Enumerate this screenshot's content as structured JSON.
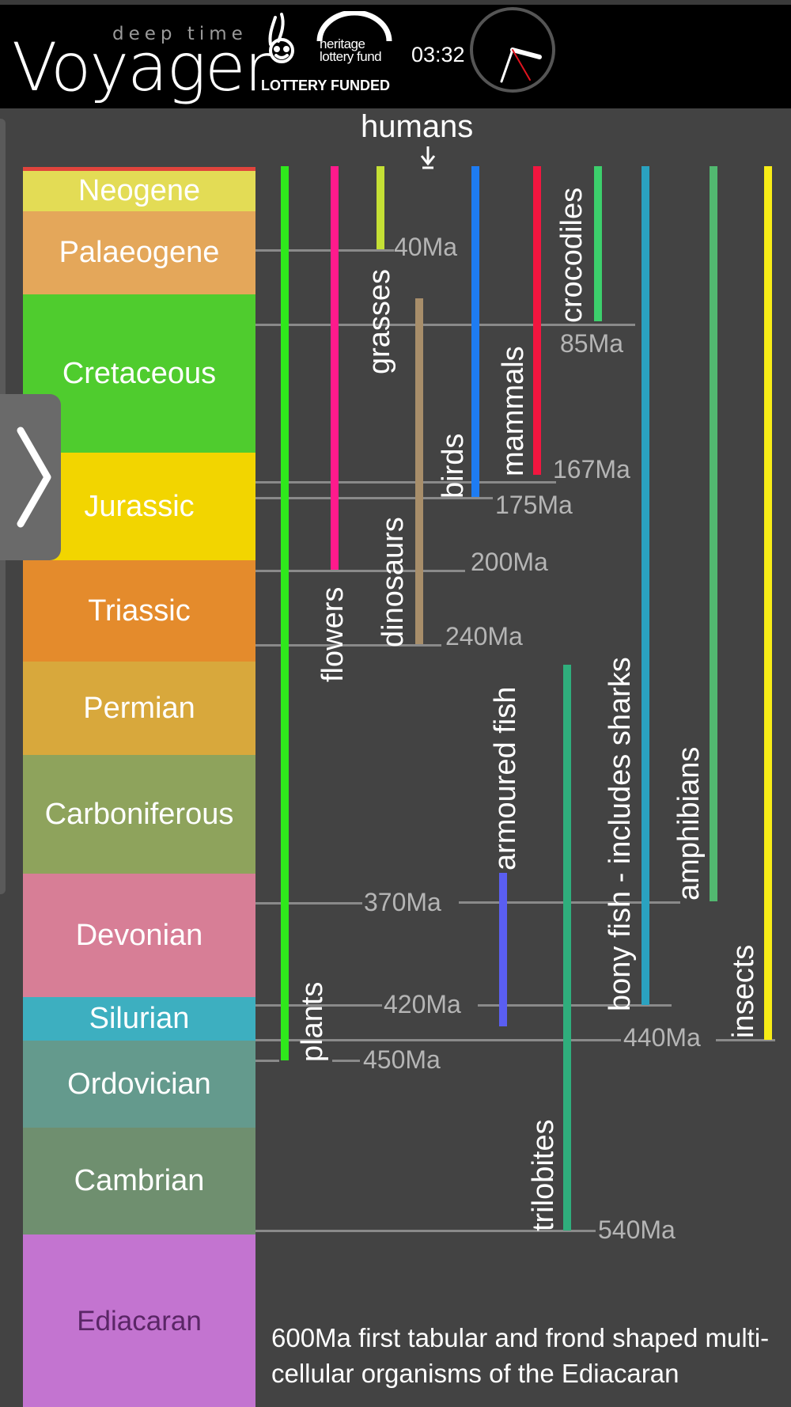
{
  "header": {
    "subtitle": "deep time",
    "title": "Voyager",
    "heritage_line1": "heritage",
    "heritage_line2": "lottery fund",
    "lottery_funded": "LOTTERY FUNDED",
    "time": "03:32"
  },
  "humans_label": "humans",
  "eras": [
    {
      "name": "Neogene",
      "color": "#e3dc55"
    },
    {
      "name": "Palaeogene",
      "color": "#e4a75a"
    },
    {
      "name": "Cretaceous",
      "color": "#4fcc2e"
    },
    {
      "name": "Jurassic",
      "color": "#f2d500"
    },
    {
      "name": "Triassic",
      "color": "#e48b2c"
    },
    {
      "name": "Permian",
      "color": "#d8a83c"
    },
    {
      "name": "Carboniferous",
      "color": "#8ea35c"
    },
    {
      "name": "Devonian",
      "color": "#d77e96"
    },
    {
      "name": "Silurian",
      "color": "#3dafc0"
    },
    {
      "name": "Ordovician",
      "color": "#649a8d"
    },
    {
      "name": "Cambrian",
      "color": "#6f8f6f"
    },
    {
      "name": "Ediacaran",
      "color": "#c374d0"
    }
  ],
  "lineages": {
    "plants": "plants",
    "flowers": "flowers",
    "grasses": "grasses",
    "dinosaurs": "dinosaurs",
    "birds": "birds",
    "mammals": "mammals",
    "crocodiles": "crocodiles",
    "armoured_fish": "armoured fish",
    "trilobites": "trilobites",
    "bony_fish": "bony fish - includes sharks",
    "amphibians": "amphibians",
    "insects": "insects"
  },
  "markers": {
    "m40": "40Ma",
    "m85": "85Ma",
    "m167": "167Ma",
    "m175": "175Ma",
    "m200": "200Ma",
    "m240": "240Ma",
    "m370": "370Ma",
    "m420": "420Ma",
    "m440": "440Ma",
    "m450": "450Ma",
    "m540": "540Ma"
  },
  "footnote": "600Ma first tabular and frond shaped multi-cellular organisms of the Ediacaran",
  "colors": {
    "plants": "#2fe81c",
    "flowers": "#ff1a8c",
    "grasses": "#c5e035",
    "dinosaurs": "#a88e6a",
    "birds": "#1e7cf2",
    "mammals": "#f2163f",
    "crocodiles": "#3ccf6c",
    "armoured_fish": "#5a5ef2",
    "trilobites": "#2fae7c",
    "bony_fish": "#2aa2c0",
    "amphibians": "#52b870",
    "insects": "#f7ec16"
  }
}
